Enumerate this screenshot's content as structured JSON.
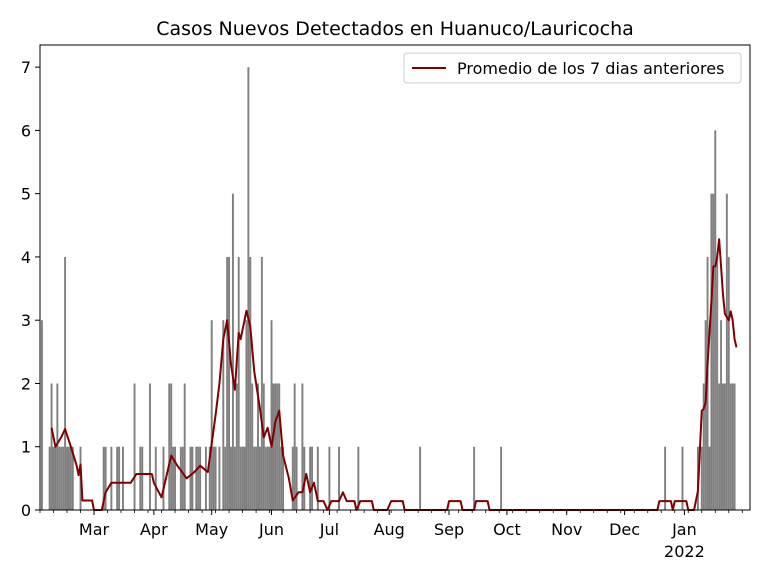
{
  "chart_data": {
    "type": "bar",
    "title": "Casos Nuevos Detectados en Huanuco/Lauricocha",
    "xlabel": "",
    "ylabel": "",
    "ylim": [
      0,
      7.35
    ],
    "yticks": [
      0,
      1,
      2,
      3,
      4,
      5,
      6,
      7
    ],
    "x_start": "2021-02-01",
    "x_end": "2022-02-04",
    "xticks": [
      {
        "date": "2021-03-01",
        "label": "Mar"
      },
      {
        "date": "2021-04-01",
        "label": "Apr"
      },
      {
        "date": "2021-05-01",
        "label": "May"
      },
      {
        "date": "2021-06-01",
        "label": "Jun"
      },
      {
        "date": "2021-07-01",
        "label": "Jul"
      },
      {
        "date": "2021-08-01",
        "label": "Aug"
      },
      {
        "date": "2021-09-01",
        "label": "Sep"
      },
      {
        "date": "2021-10-01",
        "label": "Oct"
      },
      {
        "date": "2021-11-01",
        "label": "Nov"
      },
      {
        "date": "2021-12-01",
        "label": "Dec"
      },
      {
        "date": "2022-01-01",
        "label": "Jan",
        "sublabel": "2022"
      }
    ],
    "legend": {
      "position": "top-right"
    },
    "series": [
      {
        "name": "",
        "kind": "bar",
        "color": "#808080",
        "start_date": "2021-02-02",
        "values": [
          3,
          0,
          0,
          0,
          1,
          2,
          1,
          1,
          2,
          1,
          1,
          1,
          4,
          1,
          1,
          1,
          1,
          0,
          0,
          0,
          1,
          0,
          0,
          0,
          0,
          0,
          0,
          0,
          0,
          0,
          0,
          0,
          1,
          1,
          0,
          0,
          1,
          0,
          0,
          1,
          1,
          0,
          1,
          0,
          0,
          0,
          0,
          0,
          2,
          0,
          0,
          1,
          1,
          0,
          0,
          0,
          2,
          0,
          0,
          1,
          0,
          0,
          0,
          1,
          0,
          0,
          2,
          2,
          1,
          1,
          0,
          0,
          1,
          1,
          2,
          0,
          0,
          1,
          1,
          0,
          1,
          1,
          1,
          0,
          0,
          1,
          0,
          1,
          3,
          1,
          1,
          0,
          1,
          0,
          3,
          1,
          4,
          4,
          1,
          5,
          1,
          2,
          4,
          1,
          1,
          1,
          3,
          7,
          4,
          2,
          1,
          1,
          2,
          1,
          4,
          2,
          1,
          1,
          1,
          3,
          2,
          2,
          2,
          2,
          1,
          1,
          0,
          0,
          0,
          0,
          1,
          2,
          1,
          0,
          0,
          2,
          1,
          0,
          0,
          1,
          1,
          0,
          0,
          1,
          0,
          0,
          0,
          0,
          0,
          1,
          0,
          0,
          0,
          0,
          1,
          0,
          0,
          0,
          0,
          0,
          0,
          0,
          0,
          0,
          1,
          0,
          0,
          0,
          0,
          0,
          0,
          0,
          0,
          0,
          0,
          0,
          0,
          0,
          0,
          0,
          0,
          0,
          0,
          0,
          0,
          0,
          0,
          0,
          0,
          0,
          0,
          0,
          0,
          0,
          0,
          0,
          1,
          0,
          0,
          0,
          0,
          0,
          0,
          0,
          0,
          0,
          0,
          0,
          0,
          0,
          0,
          0,
          0,
          0,
          0,
          0,
          0,
          0,
          0,
          0,
          0,
          0,
          0,
          0,
          1,
          0,
          0,
          0,
          0,
          0,
          0,
          0,
          0,
          0,
          0,
          0,
          0,
          0,
          1,
          0,
          0,
          0,
          0,
          0,
          0,
          0,
          0,
          0,
          0,
          0,
          0,
          0,
          0,
          0,
          0,
          0,
          0,
          0,
          0,
          0,
          0,
          0,
          0,
          0,
          0,
          0,
          0,
          0,
          0,
          0,
          0,
          0,
          0,
          0,
          0,
          0,
          0,
          0,
          0,
          0,
          0,
          0,
          0,
          0,
          0,
          0,
          0,
          0,
          0,
          0,
          0,
          0,
          0,
          0,
          0,
          0,
          0,
          0,
          0,
          0,
          0,
          0,
          0,
          0,
          0,
          0,
          0,
          0,
          0,
          0,
          0,
          0,
          0,
          0,
          0,
          0,
          0,
          0,
          0,
          0,
          0,
          0,
          0,
          1,
          0,
          0,
          0,
          0,
          0,
          0,
          0,
          0,
          1,
          0,
          0,
          0,
          0,
          0,
          0,
          0,
          1,
          0,
          1,
          2,
          3,
          4,
          1,
          5,
          5,
          6,
          4,
          2,
          3,
          2,
          2,
          5,
          4,
          2,
          2,
          2
        ]
      },
      {
        "name": "Promedio de los 7 dias anteriores",
        "kind": "line",
        "color": "#800000",
        "points": [
          [
            "2021-02-07",
            1.3
          ],
          [
            "2021-02-09",
            1.0
          ],
          [
            "2021-02-12",
            1.15
          ],
          [
            "2021-02-14",
            1.28
          ],
          [
            "2021-02-17",
            1.0
          ],
          [
            "2021-02-20",
            0.7
          ],
          [
            "2021-02-21",
            0.55
          ],
          [
            "2021-02-22",
            0.72
          ],
          [
            "2021-02-23",
            0.15
          ],
          [
            "2021-02-28",
            0.15
          ],
          [
            "2021-03-01",
            0.0
          ],
          [
            "2021-03-05",
            0.0
          ],
          [
            "2021-03-07",
            0.28
          ],
          [
            "2021-03-10",
            0.43
          ],
          [
            "2021-03-20",
            0.43
          ],
          [
            "2021-03-23",
            0.57
          ],
          [
            "2021-03-31",
            0.57
          ],
          [
            "2021-04-01",
            0.43
          ],
          [
            "2021-04-05",
            0.2
          ],
          [
            "2021-04-10",
            0.86
          ],
          [
            "2021-04-13",
            0.71
          ],
          [
            "2021-04-18",
            0.5
          ],
          [
            "2021-04-22",
            0.6
          ],
          [
            "2021-04-25",
            0.7
          ],
          [
            "2021-04-29",
            0.6
          ],
          [
            "2021-05-03",
            1.5
          ],
          [
            "2021-05-05",
            2.0
          ],
          [
            "2021-05-07",
            2.7
          ],
          [
            "2021-05-09",
            3.0
          ],
          [
            "2021-05-11",
            2.3
          ],
          [
            "2021-05-13",
            1.9
          ],
          [
            "2021-05-15",
            2.8
          ],
          [
            "2021-05-16",
            2.7
          ],
          [
            "2021-05-19",
            3.15
          ],
          [
            "2021-05-21",
            2.9
          ],
          [
            "2021-05-23",
            2.2
          ],
          [
            "2021-05-26",
            1.6
          ],
          [
            "2021-05-28",
            1.15
          ],
          [
            "2021-05-30",
            1.3
          ],
          [
            "2021-06-01",
            1.0
          ],
          [
            "2021-06-03",
            1.4
          ],
          [
            "2021-06-05",
            1.57
          ],
          [
            "2021-06-07",
            0.86
          ],
          [
            "2021-06-10",
            0.5
          ],
          [
            "2021-06-12",
            0.15
          ],
          [
            "2021-06-15",
            0.28
          ],
          [
            "2021-06-17",
            0.28
          ],
          [
            "2021-06-19",
            0.57
          ],
          [
            "2021-06-21",
            0.28
          ],
          [
            "2021-06-23",
            0.43
          ],
          [
            "2021-06-25",
            0.14
          ],
          [
            "2021-06-28",
            0.14
          ],
          [
            "2021-06-30",
            0.0
          ],
          [
            "2021-07-02",
            0.14
          ],
          [
            "2021-07-06",
            0.14
          ],
          [
            "2021-07-08",
            0.28
          ],
          [
            "2021-07-10",
            0.14
          ],
          [
            "2021-07-14",
            0.14
          ],
          [
            "2021-07-15",
            0.0
          ],
          [
            "2021-07-17",
            0.14
          ],
          [
            "2021-07-23",
            0.14
          ],
          [
            "2021-07-24",
            0.0
          ],
          [
            "2021-07-31",
            0.0
          ],
          [
            "2021-08-02",
            0.14
          ],
          [
            "2021-08-08",
            0.14
          ],
          [
            "2021-08-09",
            0.0
          ],
          [
            "2021-08-31",
            0.0
          ],
          [
            "2021-09-01",
            0.14
          ],
          [
            "2021-09-07",
            0.14
          ],
          [
            "2021-09-08",
            0.0
          ],
          [
            "2021-09-14",
            0.0
          ],
          [
            "2021-09-15",
            0.14
          ],
          [
            "2021-09-21",
            0.14
          ],
          [
            "2021-09-22",
            0.0
          ],
          [
            "2021-12-18",
            0.0
          ],
          [
            "2021-12-19",
            0.14
          ],
          [
            "2021-12-25",
            0.14
          ],
          [
            "2021-12-26",
            0.0
          ],
          [
            "2021-12-27",
            0.14
          ],
          [
            "2022-01-02",
            0.14
          ],
          [
            "2022-01-03",
            0.0
          ],
          [
            "2022-01-06",
            0.0
          ],
          [
            "2022-01-08",
            0.3
          ],
          [
            "2022-01-10",
            1.57
          ],
          [
            "2022-01-11",
            1.6
          ],
          [
            "2022-01-12",
            1.7
          ],
          [
            "2022-01-13",
            2.3
          ],
          [
            "2022-01-14",
            2.8
          ],
          [
            "2022-01-15",
            3.3
          ],
          [
            "2022-01-16",
            3.85
          ],
          [
            "2022-01-17",
            3.85
          ],
          [
            "2022-01-18",
            4.0
          ],
          [
            "2022-01-19",
            4.28
          ],
          [
            "2022-01-20",
            3.85
          ],
          [
            "2022-01-21",
            3.4
          ],
          [
            "2022-01-22",
            3.1
          ],
          [
            "2022-01-24",
            3.0
          ],
          [
            "2022-01-25",
            3.14
          ],
          [
            "2022-01-26",
            3.0
          ],
          [
            "2022-01-27",
            2.7
          ],
          [
            "2022-01-28",
            2.57
          ]
        ]
      }
    ]
  }
}
